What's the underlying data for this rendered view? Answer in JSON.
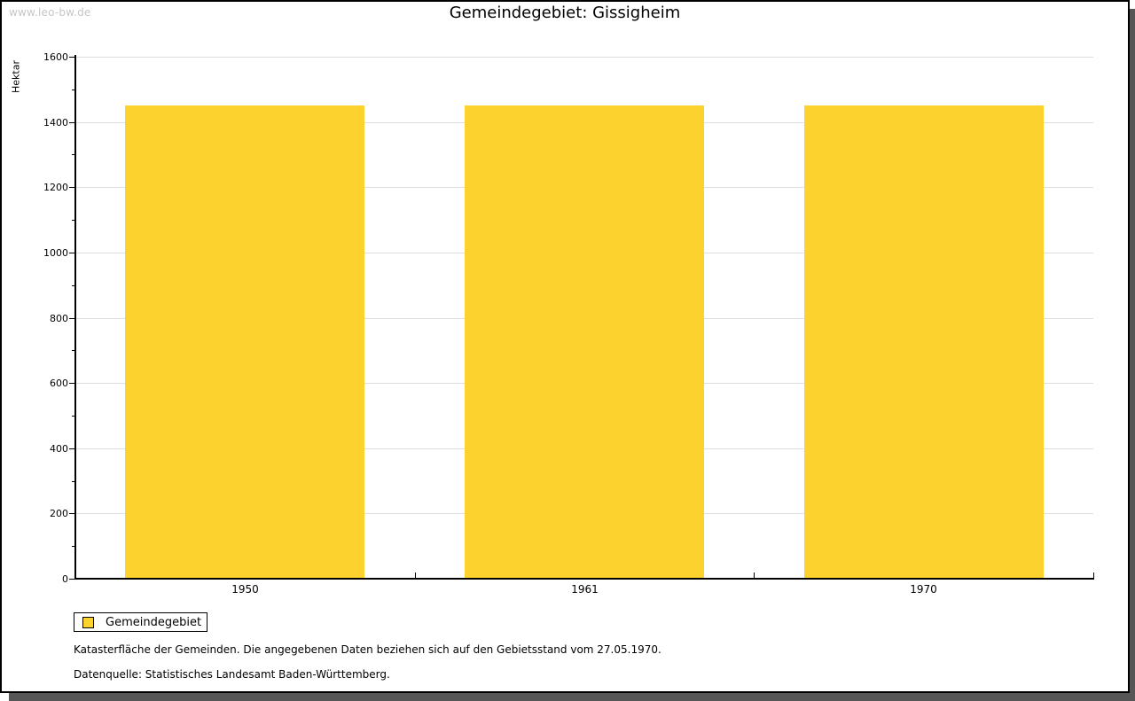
{
  "watermark": "www.leo-bw.de",
  "title": "Gemeindegebiet: Gissigheim",
  "chart_data": {
    "type": "bar",
    "categories": [
      "1950",
      "1961",
      "1970"
    ],
    "values": [
      1450,
      1450,
      1450
    ],
    "title": "Gemeindegebiet: Gissigheim",
    "xlabel": "",
    "ylabel": "Hektar",
    "ylim": [
      0,
      1600
    ],
    "ytick_major": 200,
    "ytick_minor": 100,
    "grid": true,
    "bar_color": "#fcd32e",
    "legend_position": "bottom-left"
  },
  "legend": {
    "items": [
      {
        "label": "Gemeindegebiet",
        "color": "#fcd32e"
      }
    ]
  },
  "footer": {
    "line1": "Katasterfläche der Gemeinden. Die angegebenen Daten beziehen sich auf den Gebietsstand vom 27.05.1970.",
    "line2": "Datenquelle: Statistisches Landesamt Baden-Württemberg."
  }
}
